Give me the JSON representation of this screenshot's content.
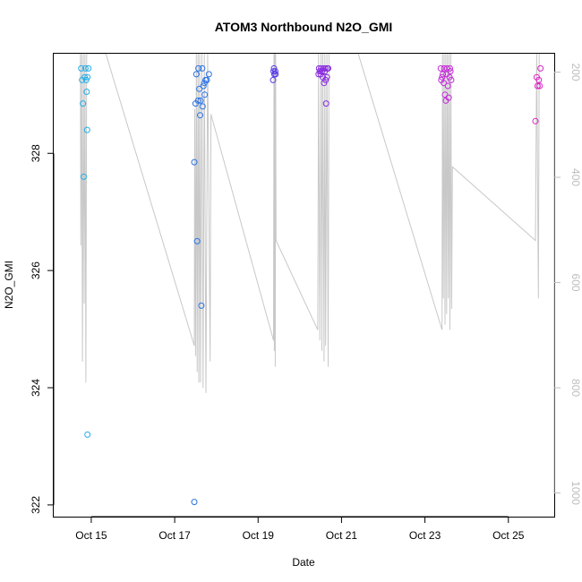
{
  "chart_data": {
    "type": "scatter",
    "title": "ATOM3 Northbound N2O_GMI",
    "xlabel": "Date",
    "ylabel": "N2O_GMI",
    "x_ticks": [
      {
        "day": 15,
        "label": "Oct 15"
      },
      {
        "day": 17,
        "label": "Oct 17"
      },
      {
        "day": 19,
        "label": "Oct 19"
      },
      {
        "day": 21,
        "label": "Oct 21"
      },
      {
        "day": 23,
        "label": "Oct 23"
      },
      {
        "day": 25,
        "label": "Oct 25"
      }
    ],
    "y_ticks": [
      322,
      324,
      326,
      328
    ],
    "y_ticks_right": [
      200,
      400,
      600,
      800,
      1000
    ],
    "xlim": [
      14.1,
      26.1
    ],
    "ylim": [
      321.8,
      329.7
    ],
    "ylim_right": [
      1045,
      165
    ],
    "right_axis_color": "#bdbdbd",
    "points": [
      {
        "x": 14.76,
        "y": 329.45,
        "c": "#25aee8"
      },
      {
        "x": 14.78,
        "y": 329.25,
        "c": "#25aee8"
      },
      {
        "x": 14.8,
        "y": 328.85,
        "c": "#25aee8"
      },
      {
        "x": 14.82,
        "y": 327.6,
        "c": "#25aee8"
      },
      {
        "x": 14.84,
        "y": 329.3,
        "c": "#25aee8"
      },
      {
        "x": 14.86,
        "y": 329.45,
        "c": "#25aee8"
      },
      {
        "x": 14.88,
        "y": 329.25,
        "c": "#25aee8"
      },
      {
        "x": 14.89,
        "y": 329.05,
        "c": "#25aee8"
      },
      {
        "x": 14.9,
        "y": 328.4,
        "c": "#25aee8"
      },
      {
        "x": 14.91,
        "y": 329.3,
        "c": "#25aee8"
      },
      {
        "x": 14.91,
        "y": 323.2,
        "c": "#25aee8"
      },
      {
        "x": 14.93,
        "y": 329.45,
        "c": "#25aee8"
      },
      {
        "x": 17.47,
        "y": 327.85,
        "c": "#2b72e6"
      },
      {
        "x": 17.47,
        "y": 322.05,
        "c": "#2b72e6"
      },
      {
        "x": 17.5,
        "y": 328.85,
        "c": "#2b72e6"
      },
      {
        "x": 17.52,
        "y": 329.35,
        "c": "#2b72e6"
      },
      {
        "x": 17.54,
        "y": 326.5,
        "c": "#2b72e6"
      },
      {
        "x": 17.56,
        "y": 328.9,
        "c": "#2b72e6"
      },
      {
        "x": 17.57,
        "y": 329.45,
        "c": "#2b72e6"
      },
      {
        "x": 17.59,
        "y": 329.1,
        "c": "#2b72e6"
      },
      {
        "x": 17.61,
        "y": 328.65,
        "c": "#2b72e6"
      },
      {
        "x": 17.62,
        "y": 328.9,
        "c": "#2b72e6"
      },
      {
        "x": 17.64,
        "y": 325.4,
        "c": "#2b72e6"
      },
      {
        "x": 17.66,
        "y": 329.45,
        "c": "#2b72e6"
      },
      {
        "x": 17.67,
        "y": 328.8,
        "c": "#2b72e6"
      },
      {
        "x": 17.69,
        "y": 329.15,
        "c": "#2b72e6"
      },
      {
        "x": 17.71,
        "y": 329.2,
        "c": "#2b72e6"
      },
      {
        "x": 17.72,
        "y": 329.0,
        "c": "#2b72e6"
      },
      {
        "x": 17.74,
        "y": 329.25,
        "c": "#2b72e6"
      },
      {
        "x": 17.77,
        "y": 329.25,
        "c": "#2b72e6"
      },
      {
        "x": 17.82,
        "y": 329.35,
        "c": "#2b72e6"
      },
      {
        "x": 19.36,
        "y": 329.25,
        "c": "#5a3ee8"
      },
      {
        "x": 19.37,
        "y": 329.4,
        "c": "#5a3ee8"
      },
      {
        "x": 19.38,
        "y": 329.45,
        "c": "#5a3ee8"
      },
      {
        "x": 19.39,
        "y": 329.35,
        "c": "#5a3ee8"
      },
      {
        "x": 19.41,
        "y": 329.4,
        "c": "#5a3ee8"
      },
      {
        "x": 19.42,
        "y": 329.35,
        "c": "#5a3ee8"
      },
      {
        "x": 20.45,
        "y": 329.35,
        "c": "#8a2be2"
      },
      {
        "x": 20.46,
        "y": 329.45,
        "c": "#8a2be2"
      },
      {
        "x": 20.48,
        "y": 329.4,
        "c": "#8a2be2"
      },
      {
        "x": 20.5,
        "y": 329.35,
        "c": "#8a2be2"
      },
      {
        "x": 20.51,
        "y": 329.45,
        "c": "#8a2be2"
      },
      {
        "x": 20.53,
        "y": 329.4,
        "c": "#8a2be2"
      },
      {
        "x": 20.55,
        "y": 329.3,
        "c": "#8a2be2"
      },
      {
        "x": 20.56,
        "y": 329.45,
        "c": "#8a2be2"
      },
      {
        "x": 20.58,
        "y": 329.2,
        "c": "#8a2be2"
      },
      {
        "x": 20.6,
        "y": 329.4,
        "c": "#8a2be2"
      },
      {
        "x": 20.61,
        "y": 329.45,
        "c": "#8a2be2"
      },
      {
        "x": 20.62,
        "y": 329.25,
        "c": "#8a2be2"
      },
      {
        "x": 20.63,
        "y": 328.85,
        "c": "#8a2be2"
      },
      {
        "x": 20.65,
        "y": 329.3,
        "c": "#8a2be2"
      },
      {
        "x": 20.66,
        "y": 329.45,
        "c": "#8a2be2"
      },
      {
        "x": 20.68,
        "y": 329.45,
        "c": "#8a2be2"
      },
      {
        "x": 23.38,
        "y": 329.45,
        "c": "#c42cd8"
      },
      {
        "x": 23.39,
        "y": 329.25,
        "c": "#c42cd8"
      },
      {
        "x": 23.41,
        "y": 329.3,
        "c": "#c42cd8"
      },
      {
        "x": 23.43,
        "y": 329.35,
        "c": "#c42cd8"
      },
      {
        "x": 23.45,
        "y": 329.2,
        "c": "#c42cd8"
      },
      {
        "x": 23.46,
        "y": 329.45,
        "c": "#c42cd8"
      },
      {
        "x": 23.48,
        "y": 329.0,
        "c": "#c42cd8"
      },
      {
        "x": 23.5,
        "y": 328.9,
        "c": "#c42cd8"
      },
      {
        "x": 23.52,
        "y": 329.35,
        "c": "#c42cd8"
      },
      {
        "x": 23.53,
        "y": 329.45,
        "c": "#c42cd8"
      },
      {
        "x": 23.55,
        "y": 329.15,
        "c": "#c42cd8"
      },
      {
        "x": 23.57,
        "y": 328.95,
        "c": "#c42cd8"
      },
      {
        "x": 23.59,
        "y": 329.3,
        "c": "#c42cd8"
      },
      {
        "x": 23.6,
        "y": 329.45,
        "c": "#c42cd8"
      },
      {
        "x": 23.61,
        "y": 329.4,
        "c": "#c42cd8"
      },
      {
        "x": 23.63,
        "y": 329.25,
        "c": "#c42cd8"
      },
      {
        "x": 25.65,
        "y": 328.55,
        "c": "#de22c4"
      },
      {
        "x": 25.68,
        "y": 329.3,
        "c": "#de22c4"
      },
      {
        "x": 25.7,
        "y": 329.15,
        "c": "#de22c4"
      },
      {
        "x": 25.73,
        "y": 329.25,
        "c": "#de22c4"
      },
      {
        "x": 25.75,
        "y": 329.15,
        "c": "#de22c4"
      },
      {
        "x": 25.77,
        "y": 329.45,
        "c": "#de22c4"
      }
    ],
    "pressure_line": [
      [
        14.74,
        165
      ],
      [
        14.75,
        530
      ],
      [
        14.77,
        165
      ],
      [
        14.79,
        750
      ],
      [
        14.81,
        165
      ],
      [
        14.83,
        640
      ],
      [
        14.85,
        165
      ],
      [
        14.87,
        790
      ],
      [
        14.89,
        165
      ],
      [
        14.91,
        165
      ],
      [
        15.35,
        165
      ],
      [
        17.47,
        720
      ],
      [
        17.48,
        270
      ],
      [
        17.5,
        740
      ],
      [
        17.52,
        165
      ],
      [
        17.54,
        770
      ],
      [
        17.56,
        165
      ],
      [
        17.58,
        790
      ],
      [
        17.6,
        165
      ],
      [
        17.62,
        790
      ],
      [
        17.65,
        165
      ],
      [
        17.68,
        800
      ],
      [
        17.71,
        165
      ],
      [
        17.75,
        810
      ],
      [
        17.79,
        165
      ],
      [
        17.85,
        750
      ],
      [
        17.87,
        280
      ],
      [
        19.37,
        710
      ],
      [
        19.38,
        165
      ],
      [
        19.39,
        730
      ],
      [
        19.4,
        165
      ],
      [
        19.41,
        760
      ],
      [
        19.42,
        165
      ],
      [
        19.43,
        520
      ],
      [
        20.43,
        690
      ],
      [
        20.45,
        165
      ],
      [
        20.48,
        710
      ],
      [
        20.51,
        165
      ],
      [
        20.53,
        730
      ],
      [
        20.55,
        165
      ],
      [
        20.58,
        750
      ],
      [
        20.6,
        165
      ],
      [
        20.62,
        720
      ],
      [
        20.65,
        165
      ],
      [
        20.68,
        760
      ],
      [
        20.7,
        165
      ],
      [
        21.4,
        165
      ],
      [
        23.41,
        690
      ],
      [
        23.42,
        165
      ],
      [
        23.44,
        630
      ],
      [
        23.46,
        165
      ],
      [
        23.48,
        680
      ],
      [
        23.5,
        165
      ],
      [
        23.52,
        660
      ],
      [
        23.54,
        165
      ],
      [
        23.56,
        630
      ],
      [
        23.58,
        165
      ],
      [
        23.6,
        690
      ],
      [
        23.62,
        165
      ],
      [
        23.64,
        650
      ],
      [
        23.66,
        380
      ],
      [
        25.65,
        520
      ],
      [
        25.68,
        165
      ],
      [
        25.72,
        630
      ],
      [
        25.74,
        165
      ],
      [
        25.77,
        165
      ]
    ]
  }
}
